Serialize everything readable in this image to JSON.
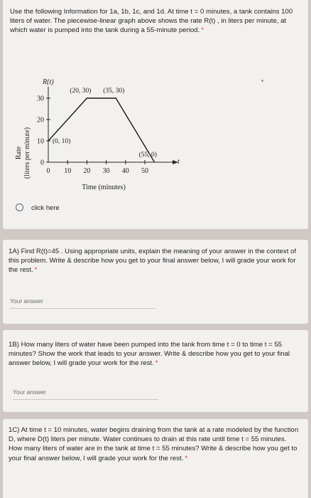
{
  "q1": {
    "text": "Use the following Information for 1a, 1b, 1c, and 1d. At time t = 0 minutes, a tank contains 100 liters of water. The piecewise-linear graph above shows the rate R(t) , in liters per minute, at which water is pumped into the tank during a 55-minute period.",
    "required_mark": "*",
    "radio_option": "click here"
  },
  "chart_data": {
    "type": "line",
    "title": "",
    "function_label": "R(t)",
    "t_axis_label": "t",
    "xlabel": "Time (minutes)",
    "ylabel_line1": "Rate",
    "ylabel_line2": "(liters per minute)",
    "x_ticks": [
      0,
      10,
      20,
      30,
      40,
      50
    ],
    "y_ticks": [
      0,
      10,
      20,
      30
    ],
    "xlim": [
      0,
      58
    ],
    "ylim": [
      0,
      35
    ],
    "series": [
      {
        "points": [
          [
            0,
            10
          ],
          [
            20,
            30
          ],
          [
            35,
            30
          ],
          [
            55,
            0
          ]
        ]
      }
    ],
    "point_labels": [
      "(0, 10)",
      "(20, 30)",
      "(35, 30)",
      "(55, 0)"
    ],
    "grid": false
  },
  "q2": {
    "text": "1A) Find R(t)=45 . Using appropriate units, explain the meaning of your answer in the context of this problem. Write & describe how you get to your final answer below, I will grade your work for the rest.",
    "required_mark": "*",
    "answer_placeholder": "Your answer"
  },
  "q3": {
    "text": "1B) How many liters of water have been pumped into the tank from time t = 0 to time t = 55 minutes? Show the work that leads to your answer. Write & describe how you get to your final answer below, I will grade your work for the rest.",
    "required_mark": "*",
    "answer_placeholder": "Your answer"
  },
  "q4": {
    "text": "1C) At time t = 10 minutes, water begins draining from the tank at a rate modeled by the function D, where D(t) liters per minute. Water continues to drain at this rate until time t = 55 minutes. How many liters of water are in the tank at time t = 55 minutes? Write & describe how you get to your final answer below, I will grade your work for the rest.",
    "required_mark": "*"
  }
}
